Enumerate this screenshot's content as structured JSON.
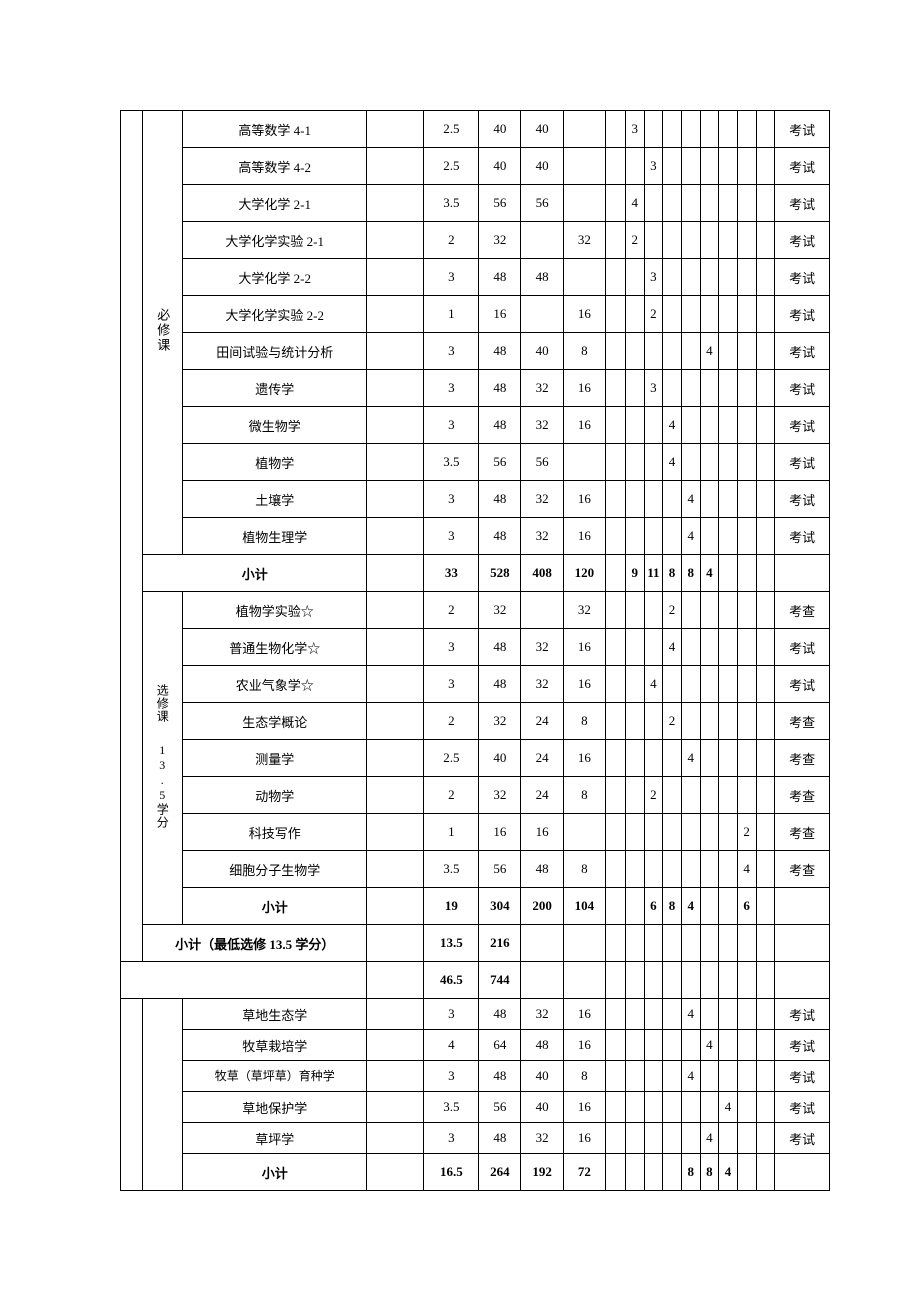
{
  "labels": {
    "required": "必修课",
    "elective": "选修课",
    "credit_req": "13.5学分",
    "subtotal": "小计",
    "subtotal_min": "小计（最低选修 13.5 学分）",
    "exam": "考试",
    "check": "考查"
  },
  "block_a_required": [
    {
      "name": "高等数学 4-1",
      "credit": "2.5",
      "h1": "40",
      "h2": "40",
      "h3": "",
      "h4": "",
      "s": [
        "3",
        "",
        "",
        "",
        "",
        "",
        "",
        ""
      ],
      "assess": "考试"
    },
    {
      "name": "高等数学 4-2",
      "credit": "2.5",
      "h1": "40",
      "h2": "40",
      "h3": "",
      "h4": "",
      "s": [
        "",
        "3",
        "",
        "",
        "",
        "",
        "",
        ""
      ],
      "assess": "考试"
    },
    {
      "name": "大学化学 2-1",
      "credit": "3.5",
      "h1": "56",
      "h2": "56",
      "h3": "",
      "h4": "",
      "s": [
        "4",
        "",
        "",
        "",
        "",
        "",
        "",
        ""
      ],
      "assess": "考试"
    },
    {
      "name": "大学化学实验 2-1",
      "credit": "2",
      "h1": "32",
      "h2": "",
      "h3": "32",
      "h4": "",
      "s": [
        "2",
        "",
        "",
        "",
        "",
        "",
        "",
        ""
      ],
      "assess": "考试"
    },
    {
      "name": "大学化学 2-2",
      "credit": "3",
      "h1": "48",
      "h2": "48",
      "h3": "",
      "h4": "",
      "s": [
        "",
        "3",
        "",
        "",
        "",
        "",
        "",
        ""
      ],
      "assess": "考试"
    },
    {
      "name": "大学化学实验 2-2",
      "credit": "1",
      "h1": "16",
      "h2": "",
      "h3": "16",
      "h4": "",
      "s": [
        "",
        "2",
        "",
        "",
        "",
        "",
        "",
        ""
      ],
      "assess": "考试"
    },
    {
      "name": "田间试验与统计分析",
      "credit": "3",
      "h1": "48",
      "h2": "40",
      "h3": "8",
      "h4": "",
      "s": [
        "",
        "",
        "",
        "",
        "4",
        "",
        "",
        ""
      ],
      "assess": "考试"
    },
    {
      "name": "遗传学",
      "credit": "3",
      "h1": "48",
      "h2": "32",
      "h3": "16",
      "h4": "",
      "s": [
        "",
        "3",
        "",
        "",
        "",
        "",
        "",
        ""
      ],
      "assess": "考试"
    },
    {
      "name": "微生物学",
      "credit": "3",
      "h1": "48",
      "h2": "32",
      "h3": "16",
      "h4": "",
      "s": [
        "",
        "",
        "4",
        "",
        "",
        "",
        "",
        ""
      ],
      "assess": "考试"
    },
    {
      "name": "植物学",
      "credit": "3.5",
      "h1": "56",
      "h2": "56",
      "h3": "",
      "h4": "",
      "s": [
        "",
        "",
        "4",
        "",
        "",
        "",
        "",
        ""
      ],
      "assess": "考试"
    },
    {
      "name": "土壤学",
      "credit": "3",
      "h1": "48",
      "h2": "32",
      "h3": "16",
      "h4": "",
      "s": [
        "",
        "",
        "",
        "4",
        "",
        "",
        "",
        ""
      ],
      "assess": "考试"
    },
    {
      "name": "植物生理学",
      "credit": "3",
      "h1": "48",
      "h2": "32",
      "h3": "16",
      "h4": "",
      "s": [
        "",
        "",
        "",
        "4",
        "",
        "",
        "",
        ""
      ],
      "assess": "考试"
    }
  ],
  "block_a_required_subtotal": {
    "credit": "33",
    "h1": "528",
    "h2": "408",
    "h3": "120",
    "h4": "",
    "s": [
      "9",
      "11",
      "8",
      "8",
      "4",
      "",
      "",
      ""
    ]
  },
  "block_a_elective": [
    {
      "name": "植物学实验☆",
      "credit": "2",
      "h1": "32",
      "h2": "",
      "h3": "32",
      "h4": "",
      "s": [
        "",
        "",
        "2",
        "",
        "",
        "",
        "",
        ""
      ],
      "assess": "考查"
    },
    {
      "name": "普通生物化学☆",
      "credit": "3",
      "h1": "48",
      "h2": "32",
      "h3": "16",
      "h4": "",
      "s": [
        "",
        "",
        "4",
        "",
        "",
        "",
        "",
        ""
      ],
      "assess": "考试"
    },
    {
      "name": "农业气象学☆",
      "credit": "3",
      "h1": "48",
      "h2": "32",
      "h3": "16",
      "h4": "",
      "s": [
        "",
        "4",
        "",
        "",
        "",
        "",
        "",
        ""
      ],
      "assess": "考试"
    },
    {
      "name": "生态学概论",
      "credit": "2",
      "h1": "32",
      "h2": "24",
      "h3": "8",
      "h4": "",
      "s": [
        "",
        "",
        "2",
        "",
        "",
        "",
        "",
        ""
      ],
      "assess": "考查"
    },
    {
      "name": "测量学",
      "credit": "2.5",
      "h1": "40",
      "h2": "24",
      "h3": "16",
      "h4": "",
      "s": [
        "",
        "",
        "",
        "4",
        "",
        "",
        "",
        ""
      ],
      "assess": "考查"
    },
    {
      "name": "动物学",
      "credit": "2",
      "h1": "32",
      "h2": "24",
      "h3": "8",
      "h4": "",
      "s": [
        "",
        "2",
        "",
        "",
        "",
        "",
        "",
        ""
      ],
      "assess": "考查"
    },
    {
      "name": "科技写作",
      "credit": "1",
      "h1": "16",
      "h2": "16",
      "h3": "",
      "h4": "",
      "s": [
        "",
        "",
        "",
        "",
        "",
        "",
        "2",
        ""
      ],
      "assess": "考查"
    },
    {
      "name": "细胞分子生物学",
      "credit": "3.5",
      "h1": "56",
      "h2": "48",
      "h3": "8",
      "h4": "",
      "s": [
        "",
        "",
        "",
        "",
        "",
        "",
        "4",
        ""
      ],
      "assess": "考查"
    }
  ],
  "block_a_elective_subtotal": {
    "credit": "19",
    "h1": "304",
    "h2": "200",
    "h3": "104",
    "h4": "",
    "s": [
      "",
      "6",
      "8",
      "4",
      "",
      "",
      "6",
      ""
    ]
  },
  "block_a_min_subtotal": {
    "credit": "13.5",
    "h1": "216"
  },
  "block_a_grand": {
    "credit": "46.5",
    "h1": "744"
  },
  "block_b": [
    {
      "name": "草地生态学",
      "credit": "3",
      "h1": "48",
      "h2": "32",
      "h3": "16",
      "h4": "",
      "s": [
        "",
        "",
        "",
        "4",
        "",
        "",
        "",
        ""
      ],
      "assess": "考试"
    },
    {
      "name": "牧草栽培学",
      "credit": "4",
      "h1": "64",
      "h2": "48",
      "h3": "16",
      "h4": "",
      "s": [
        "",
        "",
        "",
        "",
        "4",
        "",
        "",
        ""
      ],
      "assess": "考试"
    },
    {
      "name": "牧草（草坪草）育种学",
      "credit": "3",
      "h1": "48",
      "h2": "40",
      "h3": "8",
      "h4": "",
      "s": [
        "",
        "",
        "",
        "4",
        "",
        "",
        "",
        ""
      ],
      "assess": "考试",
      "lh": true
    },
    {
      "name": "草地保护学",
      "credit": "3.5",
      "h1": "56",
      "h2": "40",
      "h3": "16",
      "h4": "",
      "s": [
        "",
        "",
        "",
        "",
        "",
        "4",
        "",
        ""
      ],
      "assess": "考试"
    },
    {
      "name": "草坪学",
      "credit": "3",
      "h1": "48",
      "h2": "32",
      "h3": "16",
      "h4": "",
      "s": [
        "",
        "",
        "",
        "",
        "4",
        "",
        "",
        ""
      ],
      "assess": "考试"
    }
  ],
  "block_b_subtotal": {
    "credit": "16.5",
    "h1": "264",
    "h2": "192",
    "h3": "72",
    "h4": "",
    "s": [
      "",
      "",
      "",
      "8",
      "8",
      "4",
      "",
      ""
    ]
  }
}
